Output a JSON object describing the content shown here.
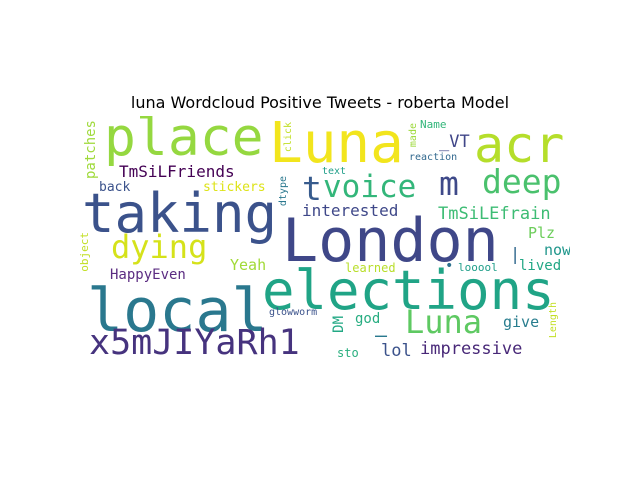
{
  "title": "luna Wordcloud Positive Tweets - roberta Model",
  "words": [
    {
      "key": "place",
      "text": "place",
      "color": "#95d840"
    },
    {
      "key": "luna_big",
      "text": "Luna",
      "color": "#f2e51d"
    },
    {
      "key": "acr",
      "text": "acr",
      "color": "#b5de2b"
    },
    {
      "key": "taking",
      "text": "taking",
      "color": "#3b528b"
    },
    {
      "key": "london",
      "text": "London",
      "color": "#3f4788"
    },
    {
      "key": "local",
      "text": "local",
      "color": "#2a788e"
    },
    {
      "key": "elections",
      "text": "elections",
      "color": "#20a486"
    },
    {
      "key": "x5m",
      "text": "x5mJIYaRh1",
      "color": "#46337e"
    },
    {
      "key": "voice",
      "text": "voice",
      "color": "#33b67a"
    },
    {
      "key": "t",
      "text": "t",
      "color": "#375b8d"
    },
    {
      "key": "m",
      "text": "m",
      "color": "#3e4989"
    },
    {
      "key": "deep",
      "text": "deep",
      "color": "#4ac16d"
    },
    {
      "key": "dying",
      "text": "dying",
      "color": "#d5e21a"
    },
    {
      "key": "luna_mid",
      "text": "Luna",
      "color": "#5ec962"
    },
    {
      "key": "tmsilfriends",
      "text": "TmSiLFriends",
      "color": "#440154"
    },
    {
      "key": "tmsilefrain",
      "text": "TmSiLEfrain",
      "color": "#3dbc74"
    },
    {
      "key": "interested",
      "text": "interested",
      "color": "#3f4889"
    },
    {
      "key": "happyeven",
      "text": "HappyEven",
      "color": "#5b2c82"
    },
    {
      "key": "impressive",
      "text": "impressive",
      "color": "#482878"
    },
    {
      "key": "vt",
      "text": "_VT",
      "color": "#404688"
    },
    {
      "key": "yeah",
      "text": "Yeah",
      "color": "#a2da37"
    },
    {
      "key": "back",
      "text": "back",
      "color": "#3b528b"
    },
    {
      "key": "stickers",
      "text": "stickers",
      "color": "#dde318"
    },
    {
      "key": "plz",
      "text": "Plz",
      "color": "#6ccd5a"
    },
    {
      "key": "now",
      "text": "now",
      "color": "#1f968b"
    },
    {
      "key": "lived",
      "text": "lived",
      "color": "#22a785"
    },
    {
      "key": "lol",
      "text": "lol",
      "color": "#3b528b"
    },
    {
      "key": "dash",
      "text": "—",
      "color": "#29798e"
    },
    {
      "key": "god",
      "text": "god",
      "color": "#27ad81"
    },
    {
      "key": "give",
      "text": "give",
      "color": "#287d8e"
    },
    {
      "key": "sto",
      "text": "sto",
      "color": "#29af7f"
    },
    {
      "key": "learned",
      "text": "learned",
      "color": "#b8de29"
    },
    {
      "key": "loool",
      "text": "looool",
      "color": "#1f9e89"
    },
    {
      "key": "bar",
      "text": "|",
      "color": "#31688e"
    },
    {
      "key": "dot",
      "text": "•",
      "color": "#2c728e"
    },
    {
      "key": "glowworm",
      "text": "glowworm",
      "color": "#3b528b"
    },
    {
      "key": "name",
      "text": "Name",
      "color": "#32b67a"
    },
    {
      "key": "reaction",
      "text": "reaction",
      "color": "#31688e"
    },
    {
      "key": "text",
      "text": "text",
      "color": "#1f9e89"
    },
    {
      "key": "dtype",
      "text": "dtype",
      "color": "#2a788e"
    },
    {
      "key": "click",
      "text": "click",
      "color": "#c0df25"
    },
    {
      "key": "made",
      "text": "made",
      "color": "#9dd93b"
    },
    {
      "key": "patches",
      "text": "patches",
      "color": "#9fda3a"
    },
    {
      "key": "object",
      "text": "object",
      "color": "#c2df23"
    },
    {
      "key": "dm",
      "text": "DM",
      "color": "#22a884"
    },
    {
      "key": "length",
      "text": "Length",
      "color": "#c2df23"
    }
  ]
}
